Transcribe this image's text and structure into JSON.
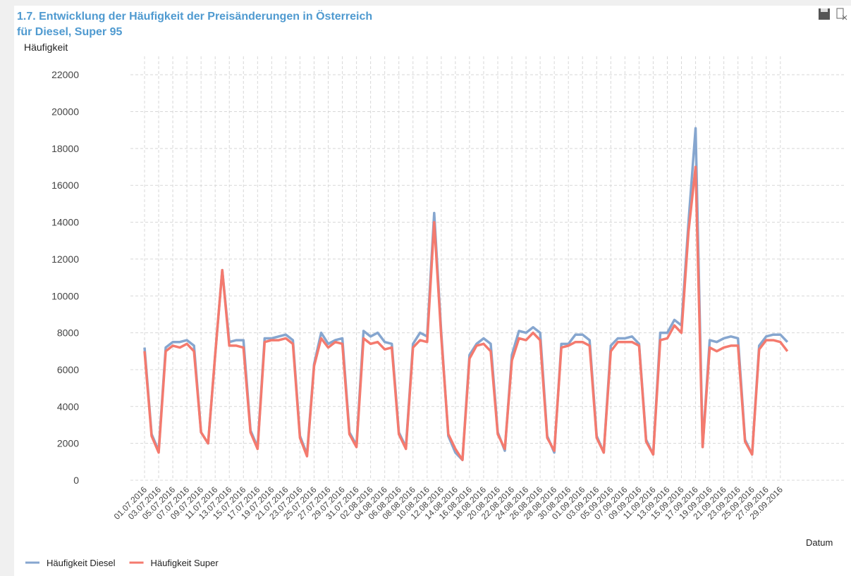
{
  "chart_data": {
    "type": "line",
    "title": "1.7. Entwicklung der Häufigkeit der Preisänderungen in Österreich",
    "subtitle": "für Diesel, Super 95",
    "y_label": "Häufigkeit",
    "x_label": "Datum",
    "categories": [
      "01.07.2016",
      null,
      "03.07.2016",
      null,
      "05.07.2016",
      null,
      "07.07.2016",
      null,
      "09.07.2016",
      null,
      "11.07.2016",
      null,
      "13.07.2016",
      null,
      "15.07.2016",
      null,
      "17.07.2016",
      null,
      "19.07.2016",
      null,
      "21.07.2016",
      null,
      "23.07.2016",
      null,
      "25.07.2016",
      null,
      "27.07.2016",
      null,
      "29.07.2016",
      null,
      "31.07.2016",
      null,
      "02.08.2016",
      null,
      "04.08.2016",
      null,
      "06.08.2016",
      null,
      "08.08.2016",
      null,
      "10.08.2016",
      null,
      "12.08.2016",
      null,
      "14.08.2016",
      null,
      "16.08.2016",
      null,
      "18.08.2016",
      null,
      "20.08.2016",
      null,
      "22.08.2016",
      null,
      "24.08.2016",
      null,
      "26.08.2016",
      null,
      "28.08.2016",
      null,
      "30.08.2016",
      null,
      "01.09.2016",
      null,
      "03.09.2016",
      null,
      "05.09.2016",
      null,
      "07.09.2016",
      null,
      "09.09.2016",
      null,
      "11.09.2016",
      null,
      "13.09.2016",
      null,
      "15.09.2016",
      null,
      "17.09.2016",
      null,
      "19.09.2016",
      null,
      "21.09.2016",
      null,
      "23.09.2016",
      null,
      "25.09.2016",
      null,
      "27.09.2016",
      null,
      "29.09.2016",
      null
    ],
    "series": [
      {
        "name": "Häufigkeit Diesel",
        "color": "#86a6cf",
        "values": [
          7200,
          2500,
          1600,
          7200,
          7500,
          7500,
          7600,
          7300,
          2600,
          2000,
          6800,
          11400,
          7500,
          7600,
          7600,
          2700,
          1800,
          7700,
          7700,
          7800,
          7900,
          7600,
          2400,
          1400,
          6300,
          8000,
          7400,
          7600,
          7700,
          2600,
          1900,
          8100,
          7800,
          8000,
          7500,
          7400,
          2600,
          1800,
          7400,
          8000,
          7800,
          14500,
          8000,
          2400,
          1500,
          1100,
          6800,
          7400,
          7700,
          7400,
          2600,
          1600,
          6800,
          8100,
          8000,
          8300,
          8000,
          2400,
          1500,
          7400,
          7400,
          7900,
          7900,
          7600,
          2400,
          1500,
          7300,
          7700,
          7700,
          7800,
          7400,
          2200,
          1400,
          8000,
          8000,
          8700,
          8400,
          14000,
          19100,
          1800,
          7600,
          7500,
          7700,
          7800,
          7700,
          2200,
          1400,
          7300,
          7800,
          7900,
          7900,
          7500
        ]
      },
      {
        "name": "Häufigkeit Super",
        "color": "#f47a6e",
        "values": [
          7000,
          2400,
          1500,
          7000,
          7300,
          7200,
          7400,
          7000,
          2600,
          2000,
          6800,
          11400,
          7300,
          7300,
          7200,
          2600,
          1700,
          7500,
          7600,
          7600,
          7700,
          7400,
          2300,
          1300,
          6200,
          7700,
          7200,
          7500,
          7400,
          2500,
          1800,
          7700,
          7400,
          7500,
          7100,
          7200,
          2500,
          1700,
          7200,
          7600,
          7500,
          14000,
          7800,
          2500,
          1700,
          1100,
          6600,
          7300,
          7400,
          7000,
          2500,
          1700,
          6500,
          7700,
          7600,
          8000,
          7600,
          2300,
          1600,
          7200,
          7300,
          7500,
          7500,
          7300,
          2300,
          1500,
          7000,
          7500,
          7500,
          7500,
          7300,
          2100,
          1400,
          7600,
          7700,
          8400,
          8000,
          13500,
          17000,
          1800,
          7200,
          7000,
          7200,
          7300,
          7300,
          2100,
          1400,
          7100,
          7600,
          7600,
          7500,
          7000
        ]
      }
    ],
    "ylim": [
      0,
      23000
    ],
    "yticks": [
      0,
      2000,
      4000,
      6000,
      8000,
      10000,
      12000,
      14000,
      16000,
      18000,
      20000,
      22000
    ],
    "grid": true
  }
}
